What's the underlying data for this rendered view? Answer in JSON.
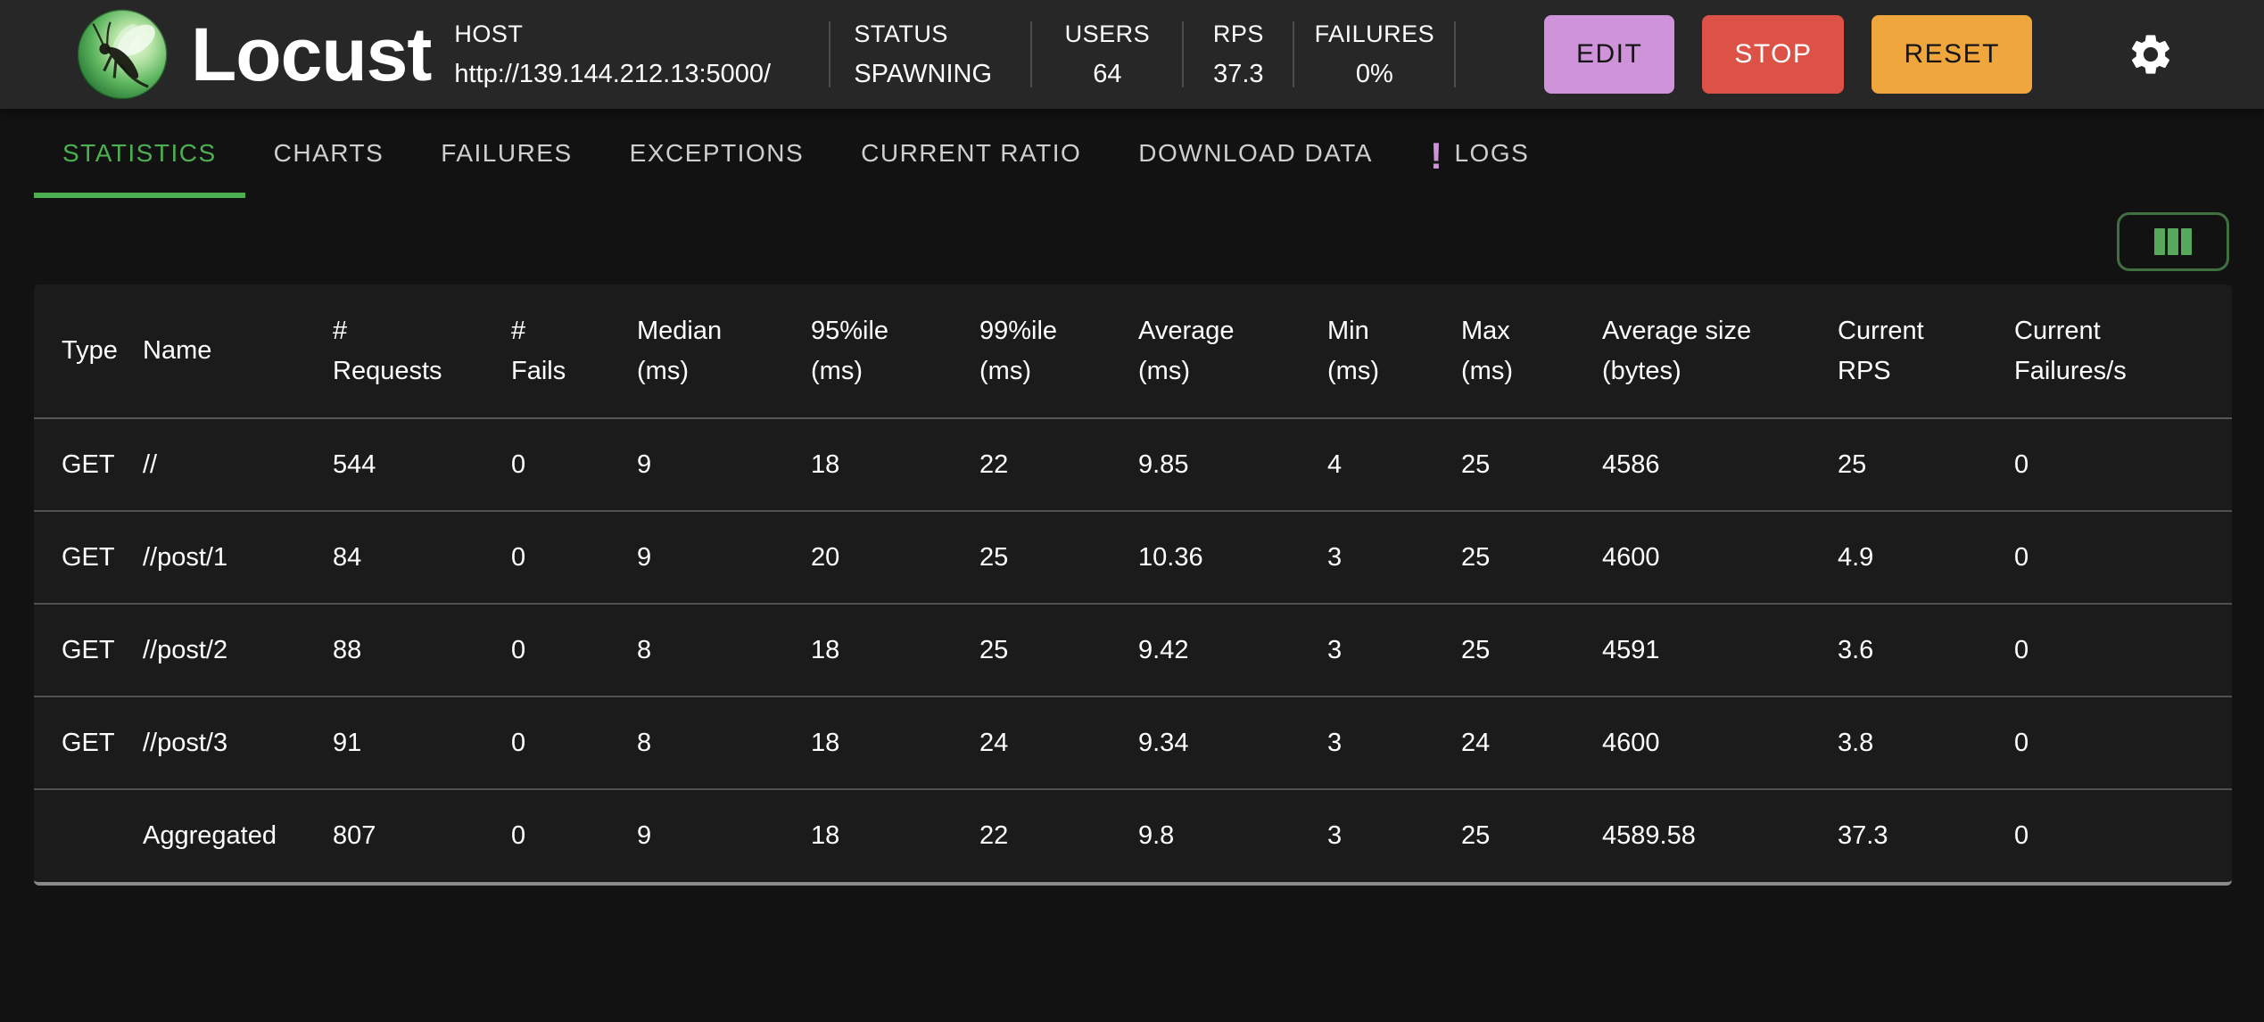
{
  "header": {
    "app_name": "Locust",
    "host": {
      "label": "HOST",
      "value": "http://139.144.212.13:5000/"
    },
    "stats": [
      {
        "label": "STATUS",
        "value": "SPAWNING"
      },
      {
        "label": "USERS",
        "value": "64"
      },
      {
        "label": "RPS",
        "value": "37.3"
      },
      {
        "label": "FAILURES",
        "value": "0%"
      }
    ],
    "buttons": {
      "edit": "EDIT",
      "stop": "STOP",
      "reset": "RESET"
    },
    "settings_icon": "gear-icon"
  },
  "tabs": [
    {
      "label": "STATISTICS",
      "active": true
    },
    {
      "label": "CHARTS",
      "active": false
    },
    {
      "label": "FAILURES",
      "active": false
    },
    {
      "label": "EXCEPTIONS",
      "active": false
    },
    {
      "label": "CURRENT RATIO",
      "active": false
    },
    {
      "label": "DOWNLOAD DATA",
      "active": false
    },
    {
      "label": "LOGS",
      "active": false,
      "badge": "!"
    }
  ],
  "toolbar": {
    "column_selector_icon": "columns-icon"
  },
  "table": {
    "columns": [
      {
        "lines": [
          "Type"
        ]
      },
      {
        "lines": [
          "Name"
        ]
      },
      {
        "lines": [
          "#",
          "Requests"
        ]
      },
      {
        "lines": [
          "#",
          "Fails"
        ]
      },
      {
        "lines": [
          "Median",
          "(ms)"
        ]
      },
      {
        "lines": [
          "95%ile",
          "(ms)"
        ]
      },
      {
        "lines": [
          "99%ile",
          "(ms)"
        ]
      },
      {
        "lines": [
          "Average",
          "(ms)"
        ]
      },
      {
        "lines": [
          "Min",
          "(ms)"
        ]
      },
      {
        "lines": [
          "Max",
          "(ms)"
        ]
      },
      {
        "lines": [
          "Average size",
          "(bytes)"
        ]
      },
      {
        "lines": [
          "Current",
          "RPS"
        ]
      },
      {
        "lines": [
          "Current",
          "Failures/s"
        ]
      }
    ],
    "rows": [
      [
        "GET",
        "//",
        "544",
        "0",
        "9",
        "18",
        "22",
        "9.85",
        "4",
        "25",
        "4586",
        "25",
        "0"
      ],
      [
        "GET",
        "//post/1",
        "84",
        "0",
        "9",
        "20",
        "25",
        "10.36",
        "3",
        "25",
        "4600",
        "4.9",
        "0"
      ],
      [
        "GET",
        "//post/2",
        "88",
        "0",
        "8",
        "18",
        "25",
        "9.42",
        "3",
        "25",
        "4591",
        "3.6",
        "0"
      ],
      [
        "GET",
        "//post/3",
        "91",
        "0",
        "8",
        "18",
        "24",
        "9.34",
        "3",
        "24",
        "4600",
        "3.8",
        "0"
      ],
      [
        "",
        "Aggregated",
        "807",
        "0",
        "9",
        "18",
        "22",
        "9.8",
        "3",
        "25",
        "4589.58",
        "37.3",
        "0"
      ]
    ]
  },
  "colors": {
    "accent_green": "#4caf50",
    "edit_purple": "#ce93d8",
    "stop_red": "#dd5246",
    "reset_amber": "#efa63d",
    "logs_badge_purple": "#ce93d8"
  }
}
